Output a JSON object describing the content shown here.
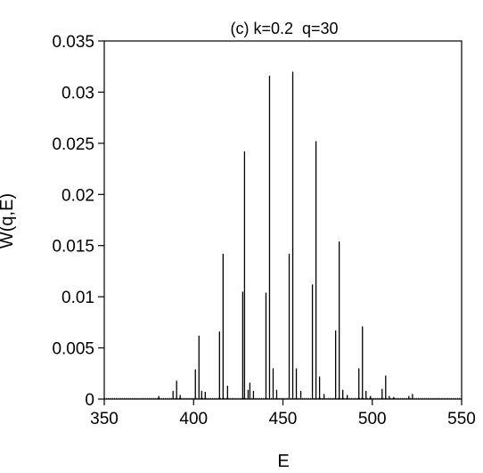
{
  "chart_data": {
    "type": "bar",
    "title": "(c) k=0.2  q=30",
    "xlabel": "E",
    "ylabel": "W(q,E)",
    "xlim": [
      350,
      550
    ],
    "ylim": [
      0,
      0.035
    ],
    "xticks": [
      350,
      400,
      450,
      500,
      550
    ],
    "xtick_labels": [
      "350",
      "400",
      "450",
      "500",
      "550"
    ],
    "yticks": [
      0,
      0.005,
      0.01,
      0.015,
      0.02,
      0.025,
      0.03,
      0.035
    ],
    "ytick_labels": [
      "0",
      "0.005",
      "0.01",
      "0.015",
      "0.02",
      "0.025",
      "0.03",
      "0.035"
    ],
    "grid": false,
    "legend": "none",
    "bar_color": "#000000",
    "x": [
      380.5,
      388.5,
      390.5,
      392.5,
      401,
      403,
      404.5,
      406.5,
      414.5,
      416.5,
      419,
      427.5,
      428.5,
      430.5,
      431.5,
      433.5,
      440.5,
      442.5,
      444.5,
      446.5,
      453.5,
      455.5,
      457.5,
      460,
      466.5,
      468.5,
      470.5,
      473,
      479.5,
      481.5,
      483.5,
      486,
      492.5,
      494.5,
      496.5,
      499,
      505.5,
      507.5,
      509.5,
      512,
      520.5,
      522.5
    ],
    "values": [
      0.0003,
      0.0008,
      0.0018,
      0.0004,
      0.0029,
      0.0062,
      0.0008,
      0.0007,
      0.0066,
      0.0142,
      0.0013,
      0.0105,
      0.0242,
      0.0009,
      0.0016,
      0.0008,
      0.0104,
      0.0316,
      0.003,
      0.0009,
      0.0142,
      0.032,
      0.003,
      0.0008,
      0.0112,
      0.0252,
      0.0022,
      0.0005,
      0.0067,
      0.0154,
      0.0009,
      0.0004,
      0.003,
      0.0071,
      0.0008,
      0.0003,
      0.001,
      0.0023,
      0.0003,
      0.0002,
      0.0003,
      0.0005
    ]
  }
}
